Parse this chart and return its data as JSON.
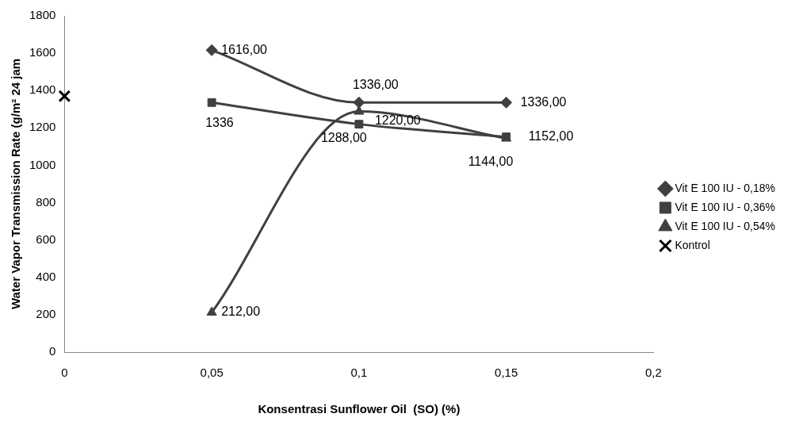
{
  "chart_data": {
    "type": "line",
    "xlabel": "Konsentrasi Sunflower Oil  (SO) (%)",
    "ylabel": "Water Vapor Transmission Rate (g/m² 24 jam",
    "xlim": [
      0,
      0.2
    ],
    "xticks": [
      0,
      {
        "value": 0.05,
        "label": "0,05"
      },
      {
        "value": 0.1,
        "label": "0,1"
      },
      {
        "value": 0.15,
        "label": "0,15"
      },
      {
        "value": 0.2,
        "label": "0,2"
      }
    ],
    "ylim": [
      0,
      1800
    ],
    "yticks": [
      0,
      200,
      400,
      600,
      800,
      1000,
      1200,
      1400,
      1600,
      1800
    ],
    "grid": false,
    "legend": "right",
    "series": [
      {
        "name": "Vit E 100 IU - 0,18%",
        "color": "#404040",
        "marker": "diamond",
        "x": [
          0.05,
          0.1,
          0.15
        ],
        "values": [
          1616,
          1336,
          1336
        ],
        "value_labels": [
          "1616,00",
          "1336,00",
          "1336,00"
        ]
      },
      {
        "name": "Vit E 100 IU - 0,36%",
        "color": "#404040",
        "marker": "square",
        "x": [
          0.05,
          0.1,
          0.15
        ],
        "values": [
          1336,
          1220,
          1152
        ],
        "value_labels": [
          "1336",
          "1220,00",
          "1152,00"
        ]
      },
      {
        "name": "Vit E 100 IU - 0,54%",
        "color": "#404040",
        "marker": "triangle",
        "x": [
          0.05,
          0.1,
          0.15
        ],
        "values": [
          212,
          1288,
          1144
        ],
        "value_labels": [
          "212,00",
          "1288,00",
          "1144,00"
        ]
      },
      {
        "name": "Kontrol",
        "type": "scatter",
        "color": "#000000",
        "marker": "cross",
        "x": [
          0
        ],
        "values": [
          1370
        ]
      }
    ]
  }
}
